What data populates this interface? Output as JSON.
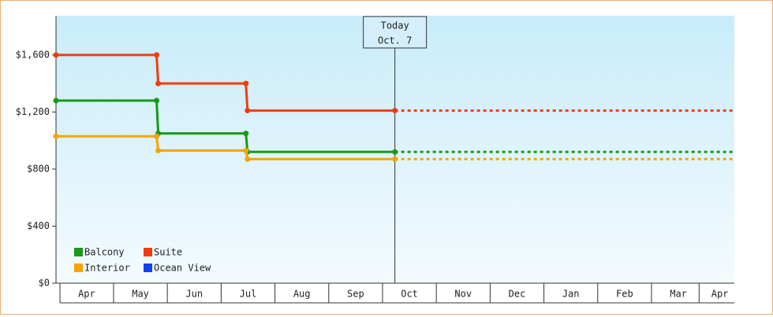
{
  "chart_data": {
    "type": "line",
    "xlim": [
      -0.07,
      12.54
    ],
    "xticks": [
      {
        "value": 0.5,
        "label": "Apr"
      },
      {
        "value": 1.5,
        "label": "May"
      },
      {
        "value": 2.5,
        "label": "Jun"
      },
      {
        "value": 3.5,
        "label": "Jul"
      },
      {
        "value": 4.5,
        "label": "Aug"
      },
      {
        "value": 5.5,
        "label": "Sep"
      },
      {
        "value": 6.5,
        "label": "Oct"
      },
      {
        "value": 7.5,
        "label": "Nov"
      },
      {
        "value": 8.5,
        "label": "Dec"
      },
      {
        "value": 9.5,
        "label": "Jan"
      },
      {
        "value": 10.5,
        "label": "Feb"
      },
      {
        "value": 11.5,
        "label": "Mar"
      },
      {
        "value": 12.27,
        "label": "Apr"
      }
    ],
    "ylim": [
      0,
      1875
    ],
    "yticks": [
      {
        "value": 0,
        "label": "$0"
      },
      {
        "value": 400,
        "label": "$400"
      },
      {
        "value": 800,
        "label": "$800"
      },
      {
        "value": 1200,
        "label": "$1,200"
      },
      {
        "value": 1600,
        "label": "$1,600"
      }
    ],
    "annotation": {
      "x": 6.23,
      "text": [
        "Today",
        "Oct. 7"
      ]
    },
    "legend": "lower left",
    "series": [
      {
        "name": "Balcony",
        "color": "#179a17",
        "x": [
          -0.07,
          1.8,
          1.83,
          3.46,
          3.49,
          6.23
        ],
        "values": [
          1280,
          1280,
          1050,
          1050,
          920,
          920
        ]
      },
      {
        "name": "Suite",
        "color": "#f23c0c",
        "x": [
          -0.07,
          1.8,
          1.83,
          3.46,
          3.49,
          6.23
        ],
        "values": [
          1600,
          1600,
          1400,
          1400,
          1210,
          1210
        ]
      },
      {
        "name": "Interior",
        "color": "#f5a400",
        "x": [
          -0.07,
          1.8,
          1.83,
          3.46,
          3.49,
          6.23
        ],
        "values": [
          1030,
          1030,
          930,
          930,
          870,
          870
        ]
      },
      {
        "name": "Ocean View",
        "color": "#1042f0",
        "x": [],
        "values": []
      }
    ]
  }
}
